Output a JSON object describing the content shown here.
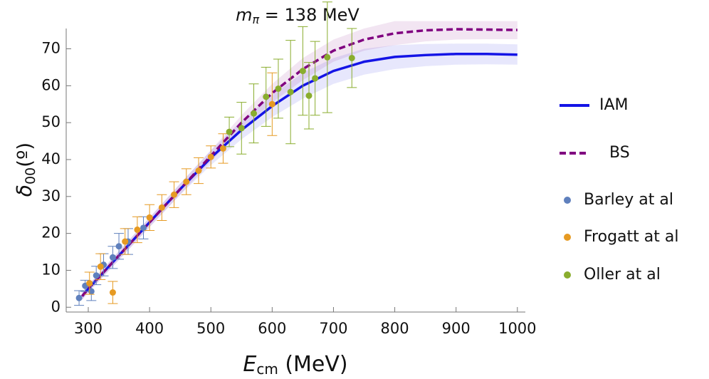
{
  "chart_data": {
    "type": "line",
    "title": {
      "symbol": "m",
      "subscript": "π",
      "text": " = 138 MeV"
    },
    "x_label": {
      "symbol": "E",
      "subscript": "cm",
      "text": " (MeV)"
    },
    "y_label": {
      "symbol": "δ",
      "subscript": "00",
      "text": "(º)"
    },
    "xlim": [
      264,
      1013
    ],
    "ylim": [
      -1.3,
      75.5
    ],
    "xticks": [
      300,
      400,
      500,
      600,
      700,
      800,
      900,
      1000
    ],
    "yticks": [
      0,
      10,
      20,
      30,
      40,
      50,
      60,
      70
    ],
    "series": [
      {
        "name": "IAM",
        "color": "#1414e6",
        "dash": false,
        "x": [
          290,
          300,
          350,
          400,
          450,
          500,
          550,
          600,
          650,
          700,
          750,
          800,
          850,
          900,
          950,
          1000
        ],
        "values": [
          3,
          5,
          14,
          23,
          32,
          40.5,
          48,
          54.5,
          60,
          64,
          66.5,
          67.8,
          68.3,
          68.6,
          68.6,
          68.4
        ],
        "band_lower": [
          2,
          4,
          12.8,
          21.7,
          30.5,
          38.5,
          45.5,
          51.5,
          56.5,
          60.5,
          63,
          64.5,
          65.3,
          65.7,
          65.8,
          65.7
        ],
        "band_upper": [
          4,
          6,
          15.2,
          24.3,
          33.5,
          42.5,
          50.5,
          57.5,
          63.5,
          67.5,
          70,
          71,
          71.3,
          71.4,
          71.4,
          71.2
        ]
      },
      {
        "name": "BS",
        "color": "#800080",
        "dash": true,
        "x": [
          290,
          300,
          350,
          400,
          450,
          500,
          550,
          600,
          650,
          700,
          750,
          800,
          850,
          900,
          950,
          1000
        ],
        "values": [
          3,
          5,
          14,
          23,
          32,
          41,
          50,
          58,
          64.5,
          69.5,
          72.5,
          74.2,
          75,
          75.3,
          75.2,
          75.1
        ],
        "band_lower": [
          2,
          4,
          12.8,
          21.7,
          30.5,
          39.5,
          48,
          55.5,
          61.5,
          66.5,
          69.5,
          71,
          72,
          72.5,
          72.6,
          72.6
        ],
        "band_upper": [
          4,
          6,
          15.2,
          24.3,
          33.5,
          42.5,
          52,
          60.5,
          67.5,
          72.5,
          75.5,
          77.5,
          77.5,
          77.5,
          77.5,
          77.5
        ]
      }
    ],
    "points": [
      {
        "name": "Barley at al",
        "color": "#5f80bd",
        "x": [
          285,
          295,
          305,
          313,
          325,
          340,
          350,
          365,
          390
        ],
        "values": [
          2.5,
          5.8,
          4.3,
          8.6,
          11.5,
          13.5,
          16.5,
          17.8,
          21.5
        ],
        "errors": [
          2,
          1.5,
          2.5,
          2.5,
          3,
          3,
          3.5,
          3.5,
          3
        ]
      },
      {
        "name": "Frogatt at al",
        "color": "#e69a22",
        "x": [
          302,
          320,
          340,
          360,
          380,
          400,
          420,
          440,
          460,
          480,
          500,
          520,
          600
        ],
        "values": [
          6.5,
          11,
          4,
          17.8,
          21,
          24.3,
          27,
          30.5,
          34,
          37,
          40.7,
          43,
          55
        ],
        "errors": [
          3,
          3.5,
          3,
          3.5,
          3.5,
          3.5,
          3.5,
          3.5,
          3.5,
          3.5,
          3,
          4,
          8.5
        ]
      },
      {
        "name": "Oller at al",
        "color": "#8aad2e",
        "x": [
          530,
          550,
          570,
          590,
          610,
          630,
          650,
          660,
          670,
          690,
          730
        ],
        "values": [
          47.5,
          48.5,
          52.5,
          57,
          59.2,
          58.3,
          64,
          57.3,
          62,
          67.7,
          67.5
        ],
        "errors": [
          4,
          7,
          8,
          8,
          8,
          14,
          12,
          9,
          10,
          15,
          8
        ]
      }
    ]
  }
}
